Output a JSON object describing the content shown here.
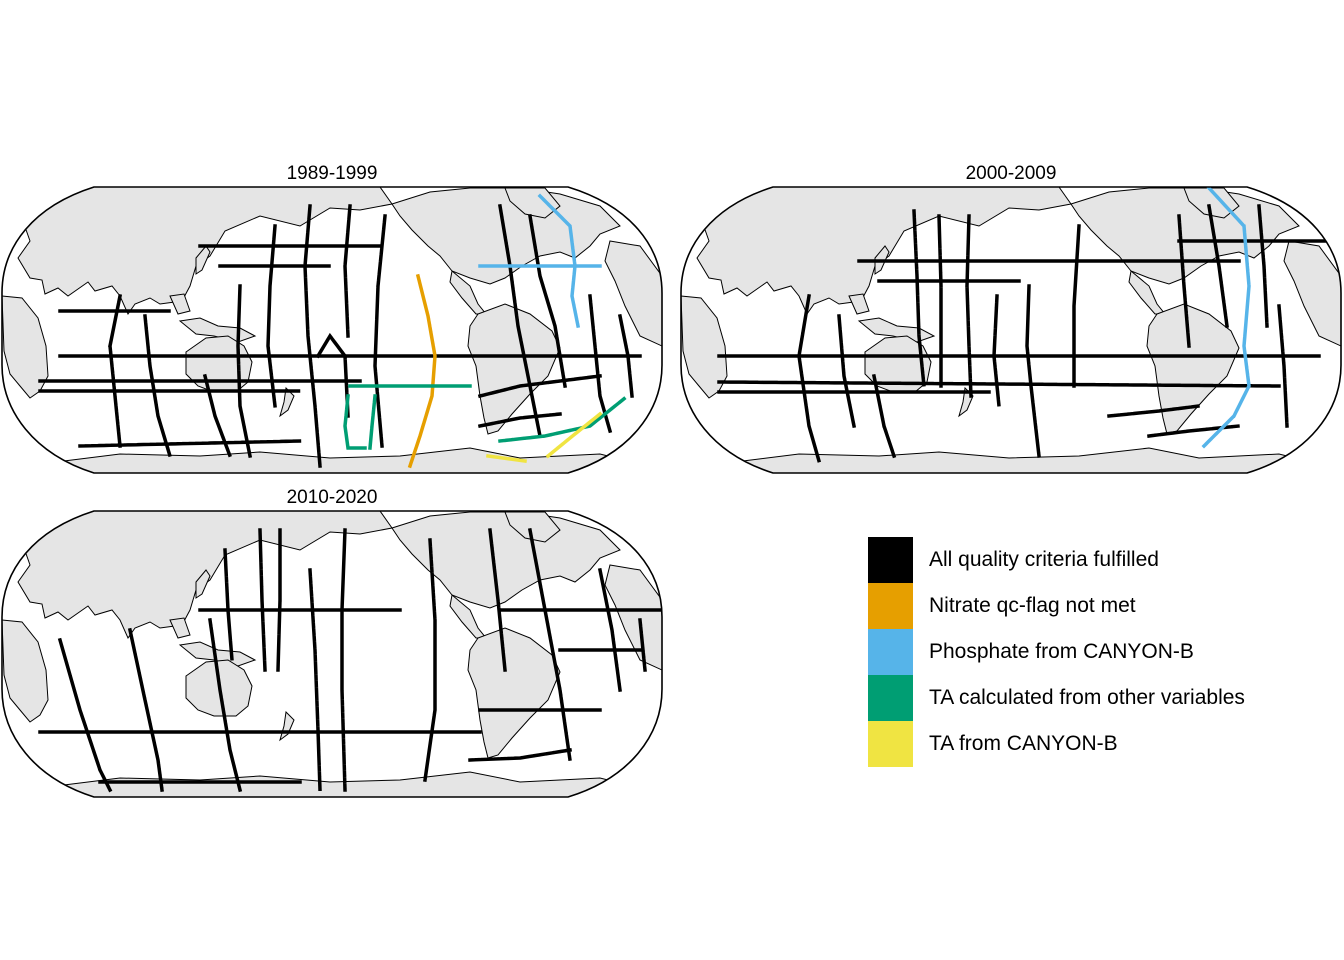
{
  "panels": [
    {
      "title": "1989-1999"
    },
    {
      "title": "2000-2009"
    },
    {
      "title": "2010-2020"
    }
  ],
  "colors": {
    "land": "#e5e5e5",
    "ocean": "#ffffff",
    "border": "#000000"
  },
  "legend": {
    "items": [
      {
        "label": "All quality criteria fulfilled",
        "color": "#000000"
      },
      {
        "label": "Nitrate qc-flag not met",
        "color": "#E69F00"
      },
      {
        "label": "Phosphate from CANYON-B",
        "color": "#56B4E9"
      },
      {
        "label": "TA calculated from other variables",
        "color": "#009E73"
      },
      {
        "label": "TA from CANYON-B",
        "color": "#F0E442"
      }
    ]
  }
}
